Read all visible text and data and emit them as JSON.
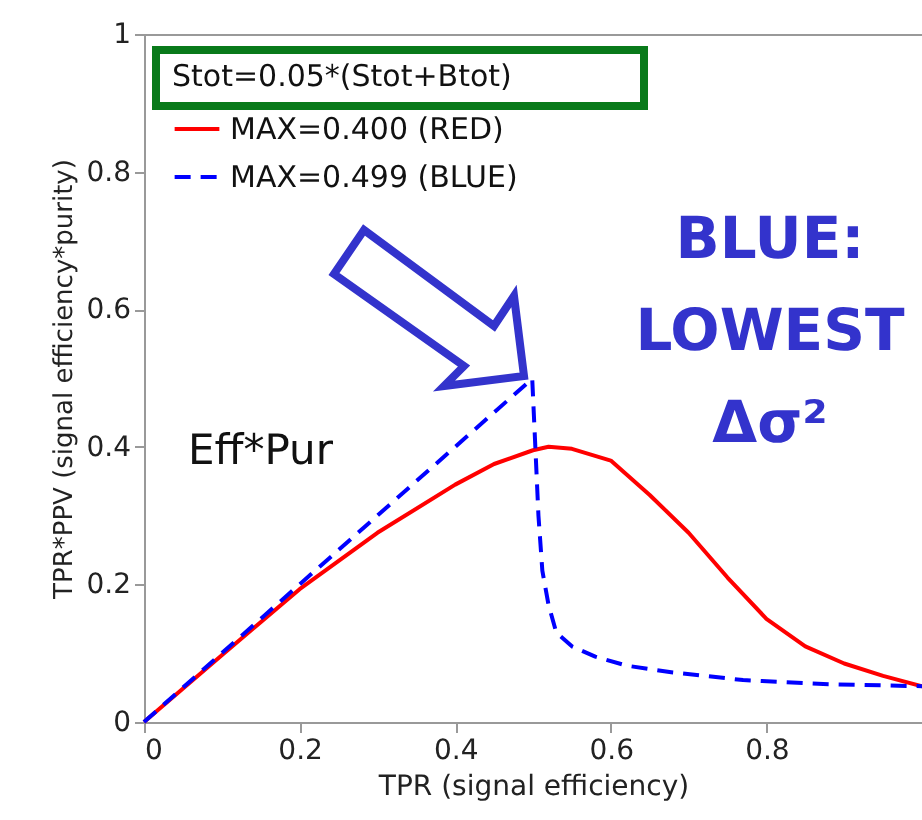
{
  "chart_data": {
    "type": "line",
    "xlabel": "TPR (signal efficiency)",
    "ylabel": "TPR*PPV (signal efficiency*purity)",
    "legend_title": "Stot=0.05*(Stot+Btot)",
    "legend": "top left",
    "xlim": [
      0,
      1
    ],
    "ylim": [
      0,
      1
    ],
    "xticks": [
      0,
      0.2,
      0.4,
      0.6,
      0.8
    ],
    "yticks": [
      0,
      0.2,
      0.4,
      0.6,
      0.8,
      1
    ],
    "grid": false,
    "marker": "none",
    "annotations": [
      "Eff*Pur",
      "BLUE: LOWEST Δσ²"
    ],
    "series": [
      {
        "name": "MAX=0.400 (RED)",
        "color": "#ff0000",
        "line_style": "solid",
        "x": [
          0,
          0.1,
          0.2,
          0.3,
          0.4,
          0.45,
          0.5,
          0.52,
          0.55,
          0.6,
          0.65,
          0.7,
          0.75,
          0.8,
          0.85,
          0.9,
          0.95,
          1.0
        ],
        "values": [
          0,
          0.097,
          0.193,
          0.275,
          0.345,
          0.375,
          0.395,
          0.4,
          0.397,
          0.38,
          0.33,
          0.275,
          0.21,
          0.15,
          0.11,
          0.085,
          0.067,
          0.052
        ]
      },
      {
        "name": "MAX=0.499 (BLUE)",
        "color": "#0000ff",
        "line_style": "dashed",
        "x": [
          0,
          0.499,
          0.503,
          0.507,
          0.512,
          0.52,
          0.53,
          0.55,
          0.58,
          0.62,
          0.68,
          0.77,
          0.88,
          1.0
        ],
        "values": [
          0,
          0.499,
          0.4,
          0.3,
          0.22,
          0.17,
          0.13,
          0.11,
          0.095,
          0.082,
          0.072,
          0.061,
          0.055,
          0.052
        ]
      }
    ]
  }
}
